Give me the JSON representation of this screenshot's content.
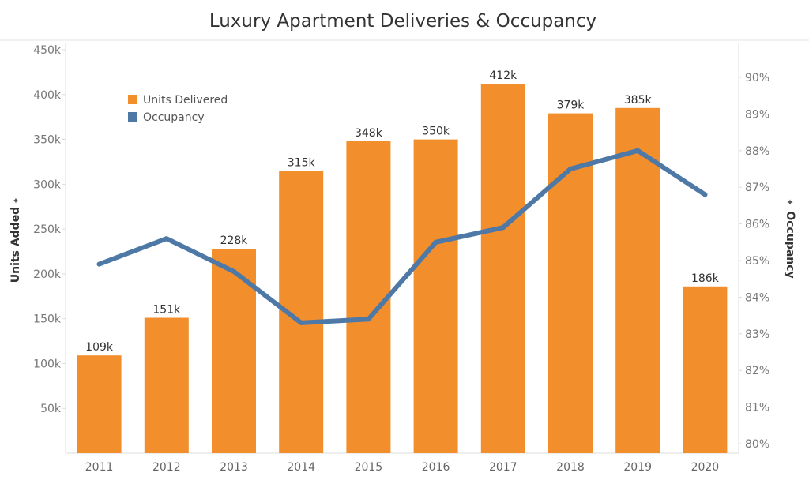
{
  "chart_data": {
    "type": "bar",
    "title": "Luxury Apartment Deliveries & Occupancy",
    "categories": [
      "2011",
      "2012",
      "2013",
      "2014",
      "2015",
      "2016",
      "2017",
      "2018",
      "2019",
      "2020"
    ],
    "series": [
      {
        "name": "Units Delivered",
        "axis": "left",
        "type": "bar",
        "color": "#f28e2b",
        "values": [
          109000,
          151000,
          228000,
          315000,
          348000,
          350000,
          412000,
          379000,
          385000,
          186000
        ],
        "labels": [
          "109k",
          "151k",
          "228k",
          "315k",
          "348k",
          "350k",
          "412k",
          "379k",
          "385k",
          "186k"
        ]
      },
      {
        "name": "Occupancy",
        "axis": "right",
        "type": "line",
        "color": "#4e79a7",
        "values": [
          84.9,
          85.6,
          84.7,
          83.3,
          83.4,
          85.5,
          85.9,
          87.5,
          88.0,
          86.8
        ]
      }
    ],
    "ylabel": "Units Added",
    "ylabel_right": "Occupancy",
    "ylim": [
      0,
      450000
    ],
    "ylim_right": [
      79.8,
      91.0
    ],
    "yticks": [
      {
        "value": 50000,
        "label": "50k"
      },
      {
        "value": 100000,
        "label": "100k"
      },
      {
        "value": 150000,
        "label": "150k"
      },
      {
        "value": 200000,
        "label": "200k"
      },
      {
        "value": 250000,
        "label": "250k"
      },
      {
        "value": 300000,
        "label": "300k"
      },
      {
        "value": 350000,
        "label": "350k"
      },
      {
        "value": 400000,
        "label": "400k"
      },
      {
        "value": 450000,
        "label": "450k"
      }
    ],
    "yticks_right": [
      {
        "value": 80,
        "label": "80%"
      },
      {
        "value": 81,
        "label": "81%"
      },
      {
        "value": 82,
        "label": "82%"
      },
      {
        "value": 83,
        "label": "83%"
      },
      {
        "value": 84,
        "label": "84%"
      },
      {
        "value": 85,
        "label": "85%"
      },
      {
        "value": 86,
        "label": "86%"
      },
      {
        "value": 87,
        "label": "87%"
      },
      {
        "value": 88,
        "label": "88%"
      },
      {
        "value": 89,
        "label": "89%"
      },
      {
        "value": 90,
        "label": "90%"
      }
    ],
    "grid": false,
    "legend_position": "top-left",
    "axis_color": "#dddddd"
  }
}
